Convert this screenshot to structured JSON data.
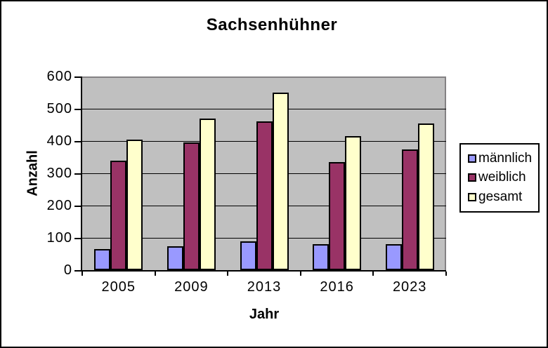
{
  "window": {
    "background": "#FFFFFF",
    "border_color": "#000000"
  },
  "chart_data": {
    "type": "bar",
    "title": "Sachsenhühner",
    "xlabel": "Jahr",
    "ylabel": "Anzahl",
    "categories": [
      "2005",
      "2009",
      "2013",
      "2016",
      "2023"
    ],
    "series": [
      {
        "name": "männlich",
        "color": "#9999FF",
        "values": [
          65,
          75,
          90,
          80,
          80
        ]
      },
      {
        "name": "weiblich",
        "color": "#993366",
        "values": [
          340,
          395,
          460,
          335,
          375
        ]
      },
      {
        "name": "gesamt",
        "color": "#FFFFCC",
        "values": [
          405,
          470,
          550,
          415,
          455
        ]
      }
    ],
    "ylim": [
      0,
      600
    ],
    "ytick_step": 100,
    "yticks": [
      0,
      100,
      200,
      300,
      400,
      500,
      600
    ],
    "grid": true,
    "gridline_color": "#000000",
    "plot_bg": "#C0C0C0",
    "plot_border_color": "#848284",
    "bar_border_color": "#000000",
    "legend_position": "right"
  }
}
